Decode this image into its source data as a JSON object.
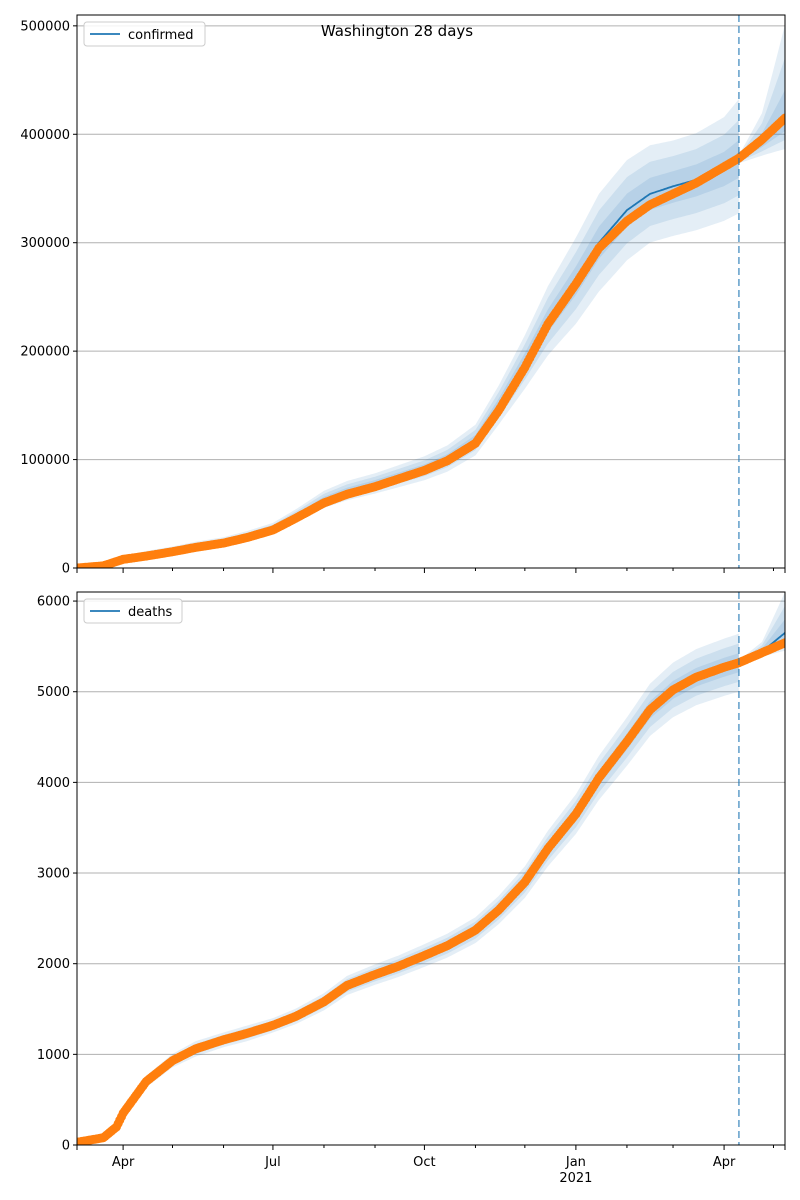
{
  "chart_data": [
    {
      "type": "line",
      "title": "Washington 28 days",
      "legend": [
        "confirmed"
      ],
      "legend_placement": "top-left",
      "ylim": [
        0,
        510000
      ],
      "yticks": [
        0,
        100000,
        200000,
        300000,
        400000,
        500000
      ],
      "grid": "y",
      "forecast_start": "2021-04-10",
      "colors": {
        "model": "#1f77b4",
        "observed": "#ff7f0e",
        "band": "#1f77b4"
      },
      "history": {
        "dates": [
          "2020-03-04",
          "2020-03-20",
          "2020-04-01",
          "2020-04-15",
          "2020-05-01",
          "2020-05-15",
          "2020-06-01",
          "2020-06-15",
          "2020-07-01",
          "2020-07-15",
          "2020-08-01",
          "2020-08-15",
          "2020-09-01",
          "2020-09-15",
          "2020-10-01",
          "2020-10-15",
          "2020-11-01",
          "2020-11-15",
          "2020-12-01",
          "2020-12-15",
          "2021-01-01",
          "2021-01-15",
          "2021-02-01",
          "2021-02-15",
          "2021-03-01",
          "2021-03-15",
          "2021-04-01",
          "2021-04-10"
        ],
        "model": [
          0,
          2000,
          8500,
          12500,
          16500,
          20500,
          24500,
          29500,
          36500,
          48000,
          63000,
          71000,
          78000,
          84500,
          92000,
          101000,
          118000,
          150000,
          190000,
          228000,
          265000,
          300000,
          330000,
          345000,
          352000,
          358000,
          368000,
          376000
        ],
        "spread_low": [
          0.3,
          0.3,
          0.3,
          0.25,
          0.2,
          0.18,
          0.16,
          0.15,
          0.14,
          0.13,
          0.12,
          0.12,
          0.12,
          0.12,
          0.12,
          0.12,
          0.12,
          0.12,
          0.13,
          0.14,
          0.15,
          0.15,
          0.14,
          0.13,
          0.13,
          0.13,
          0.13,
          0.13
        ],
        "spread_high": [
          0.3,
          0.3,
          0.3,
          0.25,
          0.2,
          0.18,
          0.16,
          0.15,
          0.14,
          0.13,
          0.13,
          0.13,
          0.12,
          0.12,
          0.12,
          0.12,
          0.12,
          0.12,
          0.13,
          0.14,
          0.15,
          0.15,
          0.14,
          0.13,
          0.12,
          0.12,
          0.13,
          0.15
        ]
      },
      "forecast": {
        "dates": [
          "2021-04-10",
          "2021-04-24",
          "2021-05-08"
        ],
        "model": [
          377000,
          392000,
          411000
        ],
        "spread_low": [
          0.01,
          0.03,
          0.06
        ],
        "spread_high": [
          0.01,
          0.07,
          0.22
        ]
      },
      "observed": {
        "dates": [
          "2020-03-04",
          "2020-03-20",
          "2020-04-01",
          "2020-04-15",
          "2020-05-01",
          "2020-05-15",
          "2020-06-01",
          "2020-06-15",
          "2020-07-01",
          "2020-07-15",
          "2020-08-01",
          "2020-08-15",
          "2020-09-01",
          "2020-09-15",
          "2020-10-01",
          "2020-10-15",
          "2020-11-01",
          "2020-11-15",
          "2020-12-01",
          "2020-12-15",
          "2021-01-01",
          "2021-01-15",
          "2021-02-01",
          "2021-02-15",
          "2021-03-01",
          "2021-03-15",
          "2021-04-01",
          "2021-04-10",
          "2021-04-24",
          "2021-05-08"
        ],
        "values": [
          0,
          2000,
          8000,
          11000,
          15000,
          19000,
          23000,
          28000,
          35000,
          46000,
          60000,
          68000,
          75000,
          82000,
          90000,
          99000,
          115000,
          145000,
          185000,
          225000,
          262000,
          295000,
          320000,
          335000,
          345000,
          355000,
          370000,
          378000,
          395000,
          415000
        ]
      }
    },
    {
      "type": "line",
      "title": "",
      "legend": [
        "deaths"
      ],
      "legend_placement": "top-left",
      "ylim": [
        0,
        6100
      ],
      "yticks": [
        0,
        1000,
        2000,
        3000,
        4000,
        5000,
        6000
      ],
      "grid": "y",
      "forecast_start": "2021-04-10",
      "colors": {
        "model": "#1f77b4",
        "observed": "#ff7f0e",
        "band": "#1f77b4"
      },
      "history": {
        "dates": [
          "2020-03-04",
          "2020-03-20",
          "2020-03-28",
          "2020-04-01",
          "2020-04-15",
          "2020-05-01",
          "2020-05-15",
          "2020-06-01",
          "2020-06-15",
          "2020-07-01",
          "2020-07-15",
          "2020-08-01",
          "2020-08-15",
          "2020-09-01",
          "2020-09-15",
          "2020-10-01",
          "2020-10-15",
          "2020-11-01",
          "2020-11-15",
          "2020-12-01",
          "2020-12-15",
          "2021-01-01",
          "2021-01-15",
          "2021-02-01",
          "2021-02-15",
          "2021-03-01",
          "2021-03-15",
          "2021-04-01",
          "2021-04-10"
        ],
        "model": [
          30,
          80,
          200,
          350,
          700,
          930,
          1060,
          1160,
          1230,
          1320,
          1420,
          1580,
          1760,
          1880,
          1970,
          2090,
          2200,
          2370,
          2590,
          2900,
          3270,
          3650,
          4050,
          4450,
          4800,
          5020,
          5160,
          5270,
          5320
        ],
        "spread_low": [
          0.1,
          0.1,
          0.1,
          0.1,
          0.09,
          0.08,
          0.08,
          0.07,
          0.07,
          0.06,
          0.06,
          0.06,
          0.06,
          0.06,
          0.06,
          0.06,
          0.06,
          0.06,
          0.06,
          0.06,
          0.06,
          0.06,
          0.06,
          0.06,
          0.06,
          0.06,
          0.06,
          0.06,
          0.06
        ],
        "spread_high": [
          0.1,
          0.1,
          0.1,
          0.1,
          0.09,
          0.08,
          0.08,
          0.07,
          0.07,
          0.06,
          0.06,
          0.06,
          0.06,
          0.06,
          0.06,
          0.06,
          0.06,
          0.06,
          0.06,
          0.06,
          0.06,
          0.06,
          0.06,
          0.06,
          0.06,
          0.06,
          0.06,
          0.06,
          0.06
        ]
      },
      "forecast": {
        "dates": [
          "2021-04-10",
          "2021-04-24",
          "2021-05-08"
        ],
        "model": [
          5320,
          5440,
          5650
        ],
        "spread_low": [
          0.005,
          0.01,
          0.035
        ],
        "spread_high": [
          0.005,
          0.02,
          0.08
        ]
      },
      "observed": {
        "dates": [
          "2020-03-04",
          "2020-03-20",
          "2020-03-28",
          "2020-04-01",
          "2020-04-15",
          "2020-05-01",
          "2020-05-15",
          "2020-06-01",
          "2020-06-15",
          "2020-07-01",
          "2020-07-15",
          "2020-08-01",
          "2020-08-15",
          "2020-09-01",
          "2020-09-15",
          "2020-10-01",
          "2020-10-15",
          "2020-11-01",
          "2020-11-15",
          "2020-12-01",
          "2020-12-15",
          "2021-01-01",
          "2021-01-15",
          "2021-02-01",
          "2021-02-15",
          "2021-03-01",
          "2021-03-15",
          "2021-04-01",
          "2021-04-10",
          "2021-04-24",
          "2021-05-08"
        ],
        "values": [
          30,
          80,
          200,
          350,
          700,
          930,
          1060,
          1160,
          1230,
          1320,
          1420,
          1580,
          1760,
          1880,
          1970,
          2090,
          2200,
          2370,
          2590,
          2900,
          3270,
          3650,
          4050,
          4450,
          4800,
          5020,
          5160,
          5270,
          5320,
          5430,
          5540
        ]
      }
    }
  ],
  "x_axis": {
    "ticks": [
      {
        "date": "2020-04-01",
        "label": "Apr",
        "sublabel": ""
      },
      {
        "date": "2020-07-01",
        "label": "Jul",
        "sublabel": ""
      },
      {
        "date": "2020-10-01",
        "label": "Oct",
        "sublabel": ""
      },
      {
        "date": "2021-01-01",
        "label": "Jan",
        "sublabel": "2021"
      },
      {
        "date": "2021-04-01",
        "label": "Apr",
        "sublabel": ""
      }
    ],
    "xlim": [
      "2020-03-04",
      "2021-05-08"
    ]
  }
}
